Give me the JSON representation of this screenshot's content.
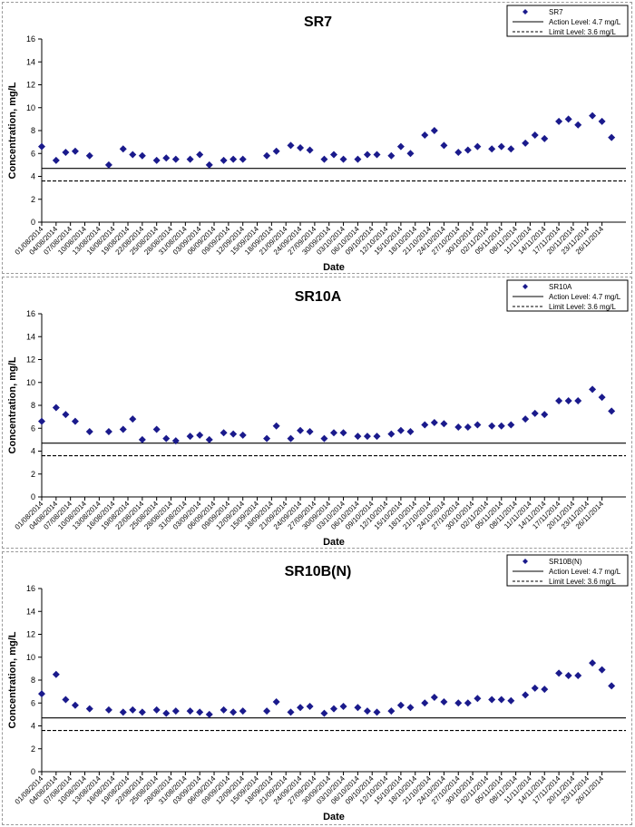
{
  "chart_data": [
    {
      "type": "scatter",
      "title": "SR7",
      "xlabel": "Date",
      "ylabel": "Concentration, mg/L",
      "ylim": [
        0,
        16
      ],
      "yticks": [
        0,
        2,
        4,
        6,
        8,
        10,
        12,
        14,
        16
      ],
      "grid": false,
      "legend_position": "top-right",
      "marker_color": "#1a1a8c",
      "xticks": [
        "01/08/2014",
        "04/08/2014",
        "07/08/2014",
        "10/08/2014",
        "13/08/2014",
        "16/08/2014",
        "19/08/2014",
        "22/08/2014",
        "25/08/2014",
        "28/08/2014",
        "31/08/2014",
        "03/09/2014",
        "06/09/2014",
        "09/09/2014",
        "12/09/2014",
        "15/09/2014",
        "18/09/2014",
        "21/09/2014",
        "24/09/2014",
        "27/09/2014",
        "30/09/2014",
        "03/10/2014",
        "06/10/2014",
        "09/10/2014",
        "12/10/2014",
        "15/10/2014",
        "18/10/2014",
        "21/10/2014",
        "24/10/2014",
        "27/10/2014",
        "30/10/2014",
        "02/11/2014",
        "05/11/2014",
        "08/11/2014",
        "11/11/2014",
        "14/11/2014",
        "17/11/2014",
        "20/11/2014",
        "23/11/2014",
        "26/11/2014"
      ],
      "series": [
        {
          "name": "SR7",
          "points": [
            [
              "01/08/2014",
              6.6
            ],
            [
              "04/08/2014",
              5.4
            ],
            [
              "06/08/2014",
              6.1
            ],
            [
              "08/08/2014",
              6.2
            ],
            [
              "11/08/2014",
              5.8
            ],
            [
              "15/08/2014",
              5.0
            ],
            [
              "18/08/2014",
              6.4
            ],
            [
              "20/08/2014",
              5.9
            ],
            [
              "22/08/2014",
              5.8
            ],
            [
              "25/08/2014",
              5.4
            ],
            [
              "27/08/2014",
              5.6
            ],
            [
              "29/08/2014",
              5.5
            ],
            [
              "01/09/2014",
              5.5
            ],
            [
              "03/09/2014",
              5.9
            ],
            [
              "05/09/2014",
              5.0
            ],
            [
              "08/09/2014",
              5.4
            ],
            [
              "10/09/2014",
              5.5
            ],
            [
              "12/09/2014",
              5.5
            ],
            [
              "17/09/2014",
              5.8
            ],
            [
              "19/09/2014",
              6.2
            ],
            [
              "22/09/2014",
              6.7
            ],
            [
              "24/09/2014",
              6.5
            ],
            [
              "26/09/2014",
              6.3
            ],
            [
              "29/09/2014",
              5.5
            ],
            [
              "01/10/2014",
              5.9
            ],
            [
              "03/10/2014",
              5.5
            ],
            [
              "06/10/2014",
              5.5
            ],
            [
              "08/10/2014",
              5.9
            ],
            [
              "10/10/2014",
              5.9
            ],
            [
              "13/10/2014",
              5.8
            ],
            [
              "15/10/2014",
              6.6
            ],
            [
              "17/10/2014",
              6.0
            ],
            [
              "20/10/2014",
              7.6
            ],
            [
              "22/10/2014",
              8.0
            ],
            [
              "24/10/2014",
              6.7
            ],
            [
              "27/10/2014",
              6.1
            ],
            [
              "29/10/2014",
              6.3
            ],
            [
              "31/10/2014",
              6.6
            ],
            [
              "03/11/2014",
              6.4
            ],
            [
              "05/11/2014",
              6.6
            ],
            [
              "07/11/2014",
              6.4
            ],
            [
              "10/11/2014",
              6.9
            ],
            [
              "12/11/2014",
              7.6
            ],
            [
              "14/11/2014",
              7.3
            ],
            [
              "17/11/2014",
              8.8
            ],
            [
              "19/11/2014",
              9.0
            ],
            [
              "21/11/2014",
              8.5
            ],
            [
              "24/11/2014",
              9.3
            ],
            [
              "26/11/2014",
              8.8
            ],
            [
              "28/11/2014",
              7.4
            ]
          ]
        }
      ],
      "reference_lines": [
        {
          "name": "Action Level: 4.7 mg/L",
          "value": 4.7,
          "style": "solid"
        },
        {
          "name": "Limit Level: 3.6 mg/L",
          "value": 3.6,
          "style": "dashed"
        }
      ]
    },
    {
      "type": "scatter",
      "title": "SR10A",
      "xlabel": "Date",
      "ylabel": "Concentration, mg/L",
      "ylim": [
        0,
        16
      ],
      "yticks": [
        0,
        2,
        4,
        6,
        8,
        10,
        12,
        14,
        16
      ],
      "grid": false,
      "legend_position": "top-right",
      "marker_color": "#1a1a8c",
      "xticks": [
        "01/08/2014",
        "04/08/2014",
        "07/08/2014",
        "10/08/2014",
        "13/08/2014",
        "16/08/2014",
        "19/08/2014",
        "22/08/2014",
        "25/08/2014",
        "28/08/2014",
        "31/08/2014",
        "03/09/2014",
        "06/09/2014",
        "09/09/2014",
        "12/09/2014",
        "15/09/2014",
        "18/09/2014",
        "21/09/2014",
        "24/09/2014",
        "27/09/2014",
        "30/09/2014",
        "03/10/2014",
        "06/10/2014",
        "09/10/2014",
        "12/10/2014",
        "15/10/2014",
        "18/10/2014",
        "21/10/2014",
        "24/10/2014",
        "27/10/2014",
        "30/10/2014",
        "02/11/2014",
        "05/11/2014",
        "08/11/2014",
        "11/11/2014",
        "14/11/2014",
        "17/11/2014",
        "20/11/2014",
        "23/11/2014",
        "26/11/2014"
      ],
      "series": [
        {
          "name": "SR10A",
          "points": [
            [
              "01/08/2014",
              6.6
            ],
            [
              "04/08/2014",
              7.8
            ],
            [
              "06/08/2014",
              7.2
            ],
            [
              "08/08/2014",
              6.6
            ],
            [
              "11/08/2014",
              5.7
            ],
            [
              "15/08/2014",
              5.7
            ],
            [
              "18/08/2014",
              5.9
            ],
            [
              "20/08/2014",
              6.8
            ],
            [
              "22/08/2014",
              5.0
            ],
            [
              "25/08/2014",
              5.9
            ],
            [
              "27/08/2014",
              5.1
            ],
            [
              "29/08/2014",
              4.9
            ],
            [
              "01/09/2014",
              5.3
            ],
            [
              "03/09/2014",
              5.4
            ],
            [
              "05/09/2014",
              5.0
            ],
            [
              "08/09/2014",
              5.6
            ],
            [
              "10/09/2014",
              5.5
            ],
            [
              "12/09/2014",
              5.4
            ],
            [
              "17/09/2014",
              5.1
            ],
            [
              "19/09/2014",
              6.2
            ],
            [
              "22/09/2014",
              5.1
            ],
            [
              "24/09/2014",
              5.8
            ],
            [
              "26/09/2014",
              5.7
            ],
            [
              "29/09/2014",
              5.1
            ],
            [
              "01/10/2014",
              5.6
            ],
            [
              "03/10/2014",
              5.6
            ],
            [
              "06/10/2014",
              5.3
            ],
            [
              "08/10/2014",
              5.3
            ],
            [
              "10/10/2014",
              5.3
            ],
            [
              "13/10/2014",
              5.5
            ],
            [
              "15/10/2014",
              5.8
            ],
            [
              "17/10/2014",
              5.7
            ],
            [
              "20/10/2014",
              6.3
            ],
            [
              "22/10/2014",
              6.5
            ],
            [
              "24/10/2014",
              6.4
            ],
            [
              "27/10/2014",
              6.1
            ],
            [
              "29/10/2014",
              6.1
            ],
            [
              "31/10/2014",
              6.3
            ],
            [
              "03/11/2014",
              6.2
            ],
            [
              "05/11/2014",
              6.2
            ],
            [
              "07/11/2014",
              6.3
            ],
            [
              "10/11/2014",
              6.8
            ],
            [
              "12/11/2014",
              7.3
            ],
            [
              "14/11/2014",
              7.2
            ],
            [
              "17/11/2014",
              8.4
            ],
            [
              "19/11/2014",
              8.4
            ],
            [
              "21/11/2014",
              8.4
            ],
            [
              "24/11/2014",
              9.4
            ],
            [
              "26/11/2014",
              8.7
            ],
            [
              "28/11/2014",
              7.5
            ]
          ]
        }
      ],
      "reference_lines": [
        {
          "name": "Action Level: 4.7 mg/L",
          "value": 4.7,
          "style": "solid"
        },
        {
          "name": "Limit Level: 3.6 mg/L",
          "value": 3.6,
          "style": "dashed"
        }
      ]
    },
    {
      "type": "scatter",
      "title": "SR10B(N)",
      "xlabel": "Date",
      "ylabel": "Concentration, mg/L",
      "ylim": [
        0,
        16
      ],
      "yticks": [
        0,
        2,
        4,
        6,
        8,
        10,
        12,
        14,
        16
      ],
      "grid": false,
      "legend_position": "top-right",
      "marker_color": "#1a1a8c",
      "xticks": [
        "01/08/2014",
        "04/08/2014",
        "07/08/2014",
        "10/08/2014",
        "13/08/2014",
        "16/08/2014",
        "19/08/2014",
        "22/08/2014",
        "25/08/2014",
        "28/08/2014",
        "31/08/2014",
        "03/09/2014",
        "06/09/2014",
        "09/09/2014",
        "12/09/2014",
        "15/09/2014",
        "18/09/2014",
        "21/09/2014",
        "24/09/2014",
        "27/09/2014",
        "30/09/2014",
        "03/10/2014",
        "06/10/2014",
        "09/10/2014",
        "12/10/2014",
        "15/10/2014",
        "18/10/2014",
        "21/10/2014",
        "24/10/2014",
        "27/10/2014",
        "30/10/2014",
        "02/11/2014",
        "05/11/2014",
        "08/11/2014",
        "11/11/2014",
        "14/11/2014",
        "17/11/2014",
        "20/11/2014",
        "23/11/2014",
        "26/11/2014"
      ],
      "series": [
        {
          "name": "SR10B(N)",
          "points": [
            [
              "01/08/2014",
              6.8
            ],
            [
              "04/08/2014",
              8.5
            ],
            [
              "06/08/2014",
              6.3
            ],
            [
              "08/08/2014",
              5.8
            ],
            [
              "11/08/2014",
              5.5
            ],
            [
              "15/08/2014",
              5.4
            ],
            [
              "18/08/2014",
              5.2
            ],
            [
              "20/08/2014",
              5.4
            ],
            [
              "22/08/2014",
              5.2
            ],
            [
              "25/08/2014",
              5.4
            ],
            [
              "27/08/2014",
              5.1
            ],
            [
              "29/08/2014",
              5.3
            ],
            [
              "01/09/2014",
              5.3
            ],
            [
              "03/09/2014",
              5.2
            ],
            [
              "05/09/2014",
              5.0
            ],
            [
              "08/09/2014",
              5.4
            ],
            [
              "10/09/2014",
              5.2
            ],
            [
              "12/09/2014",
              5.3
            ],
            [
              "17/09/2014",
              5.3
            ],
            [
              "19/09/2014",
              6.1
            ],
            [
              "22/09/2014",
              5.2
            ],
            [
              "24/09/2014",
              5.6
            ],
            [
              "26/09/2014",
              5.7
            ],
            [
              "29/09/2014",
              5.1
            ],
            [
              "01/10/2014",
              5.5
            ],
            [
              "03/10/2014",
              5.7
            ],
            [
              "06/10/2014",
              5.6
            ],
            [
              "08/10/2014",
              5.3
            ],
            [
              "10/10/2014",
              5.2
            ],
            [
              "13/10/2014",
              5.3
            ],
            [
              "15/10/2014",
              5.8
            ],
            [
              "17/10/2014",
              5.6
            ],
            [
              "20/10/2014",
              6.0
            ],
            [
              "22/10/2014",
              6.5
            ],
            [
              "24/10/2014",
              6.1
            ],
            [
              "27/10/2014",
              6.0
            ],
            [
              "29/10/2014",
              6.0
            ],
            [
              "31/10/2014",
              6.4
            ],
            [
              "03/11/2014",
              6.3
            ],
            [
              "05/11/2014",
              6.3
            ],
            [
              "07/11/2014",
              6.2
            ],
            [
              "10/11/2014",
              6.7
            ],
            [
              "12/11/2014",
              7.3
            ],
            [
              "14/11/2014",
              7.2
            ],
            [
              "17/11/2014",
              8.6
            ],
            [
              "19/11/2014",
              8.4
            ],
            [
              "21/11/2014",
              8.4
            ],
            [
              "24/11/2014",
              9.5
            ],
            [
              "26/11/2014",
              8.9
            ],
            [
              "28/11/2014",
              7.5
            ]
          ]
        }
      ],
      "reference_lines": [
        {
          "name": "Action Level: 4.7 mg/L",
          "value": 4.7,
          "style": "solid"
        },
        {
          "name": "Limit Level: 3.6 mg/L",
          "value": 3.6,
          "style": "dashed"
        }
      ]
    }
  ]
}
